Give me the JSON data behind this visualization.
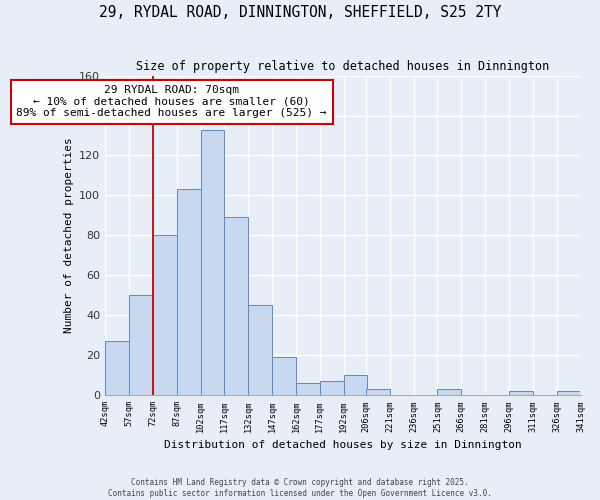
{
  "title": "29, RYDAL ROAD, DINNINGTON, SHEFFIELD, S25 2TY",
  "subtitle": "Size of property relative to detached houses in Dinnington",
  "xlabel": "Distribution of detached houses by size in Dinnington",
  "ylabel": "Number of detached properties",
  "bar_values": [
    27,
    50,
    80,
    103,
    133,
    89,
    45,
    19,
    6,
    7,
    10,
    3,
    0,
    0,
    3,
    0,
    0,
    2,
    0,
    2
  ],
  "bin_labels": [
    "42sqm",
    "57sqm",
    "72sqm",
    "87sqm",
    "102sqm",
    "117sqm",
    "132sqm",
    "147sqm",
    "162sqm",
    "177sqm",
    "192sqm",
    "206sqm",
    "221sqm",
    "236sqm",
    "251sqm",
    "266sqm",
    "281sqm",
    "296sqm",
    "311sqm",
    "326sqm",
    "341sqm"
  ],
  "bin_left_edges": [
    42,
    57,
    72,
    87,
    102,
    117,
    132,
    147,
    162,
    177,
    192,
    206,
    221,
    236,
    251,
    266,
    281,
    296,
    311,
    326
  ],
  "bar_color": "#c8d8ef",
  "bar_edge_color": "#5b8ac8",
  "vline_x": 72,
  "vline_color": "#cc0000",
  "ylim": [
    0,
    160
  ],
  "yticks": [
    0,
    20,
    40,
    60,
    80,
    100,
    120,
    140,
    160
  ],
  "annotation_title": "29 RYDAL ROAD: 70sqm",
  "annotation_line1": "← 10% of detached houses are smaller (60)",
  "annotation_line2": "89% of semi-detached houses are larger (525) →",
  "annotation_box_color": "#ffffff",
  "annotation_box_edge": "#cc0000",
  "footer_line1": "Contains HM Land Registry data © Crown copyright and database right 2025.",
  "footer_line2": "Contains public sector information licensed under the Open Government Licence v3.0.",
  "background_color": "#e8eef7",
  "grid_color": "#ffffff",
  "plot_bg_color": "#e8eef7"
}
